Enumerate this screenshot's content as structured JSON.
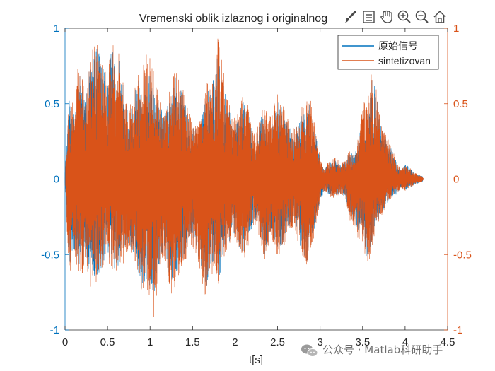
{
  "chart_data": {
    "type": "line",
    "title": "Vremenski oblik izlaznog i originalnog",
    "xlabel": "t[s]",
    "ylabel_left": "",
    "ylabel_right": "",
    "xlim": [
      0,
      4.5
    ],
    "ylim_left": [
      -1,
      1
    ],
    "ylim_right": [
      -1,
      1
    ],
    "xticks": [
      0,
      0.5,
      1,
      1.5,
      2,
      2.5,
      3,
      3.5,
      4,
      4.5
    ],
    "xtick_labels": [
      "0",
      "0.5",
      "1",
      "1.5",
      "2",
      "2.5",
      "3",
      "3.5",
      "4",
      "4.5"
    ],
    "yticks_left": [
      -1,
      -0.5,
      0,
      0.5,
      1
    ],
    "ytick_labels_left": [
      "-1",
      "-0.5",
      "0",
      "0.5",
      "1"
    ],
    "yticks_right": [
      -1,
      -0.5,
      0,
      0.5,
      1
    ],
    "ytick_labels_right": [
      "-1",
      "-0.5",
      "0",
      "0.5",
      "1"
    ],
    "grid": false,
    "legend_position": "top-right",
    "series": [
      {
        "name": "原始信号",
        "color": "#0072BD",
        "axis": "left",
        "duration": 4.22,
        "envelope_time": [
          0,
          0.05,
          0.1,
          0.15,
          0.2,
          0.25,
          0.3,
          0.35,
          0.4,
          0.45,
          0.5,
          0.55,
          0.6,
          0.65,
          0.7,
          0.75,
          0.8,
          0.85,
          0.9,
          0.95,
          1.0,
          1.05,
          1.1,
          1.15,
          1.2,
          1.25,
          1.3,
          1.35,
          1.4,
          1.45,
          1.5,
          1.55,
          1.6,
          1.65,
          1.7,
          1.75,
          1.8,
          1.85,
          1.9,
          1.95,
          2.0,
          2.05,
          2.1,
          2.15,
          2.2,
          2.25,
          2.3,
          2.35,
          2.4,
          2.45,
          2.5,
          2.55,
          2.6,
          2.65,
          2.7,
          2.75,
          2.8,
          2.85,
          2.9,
          2.95,
          3.0,
          3.05,
          3.1,
          3.15,
          3.2,
          3.25,
          3.3,
          3.35,
          3.4,
          3.45,
          3.5,
          3.55,
          3.6,
          3.65,
          3.7,
          3.75,
          3.8,
          3.85,
          3.9,
          3.95,
          4.0,
          4.05,
          4.1,
          4.15,
          4.2,
          4.22
        ],
        "envelope_max": [
          0.05,
          0.55,
          0.42,
          0.72,
          0.65,
          0.58,
          0.78,
          0.85,
          0.92,
          0.75,
          0.62,
          0.9,
          0.7,
          0.82,
          0.55,
          0.45,
          0.5,
          0.68,
          0.6,
          0.78,
          0.72,
          0.62,
          0.5,
          0.45,
          0.48,
          0.65,
          0.7,
          0.6,
          0.55,
          0.4,
          0.35,
          0.32,
          0.38,
          0.62,
          0.58,
          0.68,
          0.85,
          0.72,
          0.5,
          0.42,
          0.35,
          0.45,
          0.52,
          0.48,
          0.32,
          0.28,
          0.4,
          0.5,
          0.38,
          0.45,
          0.52,
          0.48,
          0.4,
          0.35,
          0.32,
          0.38,
          0.45,
          0.52,
          0.48,
          0.3,
          0.15,
          0.05,
          0.12,
          0.15,
          0.12,
          0.1,
          0.12,
          0.2,
          0.15,
          0.25,
          0.45,
          0.48,
          0.68,
          0.62,
          0.4,
          0.3,
          0.25,
          0.2,
          0.12,
          0.06,
          0.1,
          0.08,
          0.05,
          0.03,
          0.02,
          0.0
        ],
        "envelope_min": [
          -0.05,
          -0.6,
          -0.45,
          -0.55,
          -0.6,
          -0.5,
          -0.72,
          -0.65,
          -0.7,
          -0.6,
          -0.5,
          -0.58,
          -0.6,
          -0.55,
          -0.5,
          -0.42,
          -0.5,
          -0.55,
          -0.78,
          -0.68,
          -0.72,
          -0.75,
          -0.6,
          -0.5,
          -0.55,
          -0.72,
          -0.65,
          -0.6,
          -0.5,
          -0.45,
          -0.4,
          -0.5,
          -0.62,
          -0.75,
          -0.65,
          -0.55,
          -0.7,
          -0.55,
          -0.45,
          -0.4,
          -0.38,
          -0.45,
          -0.5,
          -0.42,
          -0.32,
          -0.3,
          -0.4,
          -0.55,
          -0.42,
          -0.38,
          -0.5,
          -0.45,
          -0.4,
          -0.35,
          -0.3,
          -0.42,
          -0.5,
          -0.55,
          -0.45,
          -0.28,
          -0.15,
          -0.08,
          -0.1,
          -0.12,
          -0.1,
          -0.1,
          -0.12,
          -0.25,
          -0.3,
          -0.38,
          -0.4,
          -0.55,
          -0.45,
          -0.35,
          -0.25,
          -0.2,
          -0.15,
          -0.12,
          -0.1,
          -0.06,
          -0.08,
          -0.06,
          -0.04,
          -0.03,
          -0.02,
          0.0
        ]
      },
      {
        "name": "sintetizovan",
        "color": "#D95319",
        "axis": "right",
        "duration": 4.22,
        "envelope_time": [
          0,
          0.05,
          0.1,
          0.15,
          0.2,
          0.25,
          0.3,
          0.35,
          0.4,
          0.45,
          0.5,
          0.55,
          0.6,
          0.65,
          0.7,
          0.75,
          0.8,
          0.85,
          0.9,
          0.95,
          1.0,
          1.05,
          1.1,
          1.15,
          1.2,
          1.25,
          1.3,
          1.35,
          1.4,
          1.45,
          1.5,
          1.55,
          1.6,
          1.65,
          1.7,
          1.75,
          1.8,
          1.85,
          1.9,
          1.95,
          2.0,
          2.05,
          2.1,
          2.15,
          2.2,
          2.25,
          2.3,
          2.35,
          2.4,
          2.45,
          2.5,
          2.55,
          2.6,
          2.65,
          2.7,
          2.75,
          2.8,
          2.85,
          2.9,
          2.95,
          3.0,
          3.05,
          3.1,
          3.15,
          3.2,
          3.25,
          3.3,
          3.35,
          3.4,
          3.45,
          3.5,
          3.55,
          3.6,
          3.65,
          3.7,
          3.75,
          3.8,
          3.85,
          3.9,
          3.95,
          4.0,
          4.05,
          4.1,
          4.15,
          4.2,
          4.22
        ],
        "envelope_max": [
          0.05,
          0.6,
          0.5,
          0.78,
          0.7,
          0.62,
          0.8,
          0.95,
          1.0,
          0.8,
          0.65,
          0.95,
          0.75,
          0.9,
          0.6,
          0.5,
          0.55,
          0.75,
          0.68,
          0.85,
          0.8,
          0.72,
          0.55,
          0.5,
          0.55,
          0.72,
          0.78,
          0.65,
          0.6,
          0.45,
          0.4,
          0.35,
          0.42,
          0.68,
          0.62,
          0.72,
          0.95,
          0.8,
          0.55,
          0.48,
          0.4,
          0.5,
          0.58,
          0.52,
          0.35,
          0.3,
          0.45,
          0.55,
          0.42,
          0.5,
          0.58,
          0.52,
          0.45,
          0.4,
          0.35,
          0.42,
          0.5,
          0.55,
          0.52,
          0.32,
          0.15,
          0.06,
          0.12,
          0.15,
          0.14,
          0.1,
          0.14,
          0.22,
          0.18,
          0.28,
          0.5,
          0.55,
          0.72,
          0.68,
          0.45,
          0.32,
          0.28,
          0.2,
          0.12,
          0.06,
          0.1,
          0.08,
          0.05,
          0.03,
          0.02,
          0.0
        ],
        "envelope_min": [
          -0.05,
          -0.65,
          -0.5,
          -0.6,
          -0.65,
          -0.55,
          -0.75,
          -0.7,
          -0.72,
          -0.62,
          -0.55,
          -0.62,
          -0.65,
          -0.6,
          -0.55,
          -0.45,
          -0.52,
          -0.6,
          -0.8,
          -0.7,
          -0.82,
          -1.0,
          -0.65,
          -0.55,
          -0.6,
          -0.78,
          -0.7,
          -0.62,
          -0.55,
          -0.5,
          -0.45,
          -0.52,
          -0.65,
          -0.8,
          -0.68,
          -0.6,
          -0.72,
          -0.6,
          -0.48,
          -0.42,
          -0.4,
          -0.48,
          -0.55,
          -0.45,
          -0.35,
          -0.32,
          -0.42,
          -0.58,
          -0.45,
          -0.42,
          -0.52,
          -0.48,
          -0.42,
          -0.38,
          -0.32,
          -0.45,
          -0.52,
          -0.58,
          -0.48,
          -0.3,
          -0.15,
          -0.08,
          -0.1,
          -0.14,
          -0.12,
          -0.1,
          -0.14,
          -0.28,
          -0.32,
          -0.4,
          -0.42,
          -0.58,
          -0.5,
          -0.38,
          -0.28,
          -0.22,
          -0.16,
          -0.12,
          -0.1,
          -0.06,
          -0.08,
          -0.06,
          -0.04,
          -0.03,
          -0.02,
          0.0
        ]
      }
    ],
    "colors": {
      "left_axis": "#0072BD",
      "right_axis": "#D95319",
      "axis_frame": "#262626"
    }
  },
  "toolbar": {
    "icons": [
      "brush-icon",
      "legend-icon",
      "pan-hand-icon",
      "zoom-in-icon",
      "zoom-out-icon",
      "home-icon"
    ]
  },
  "watermark": {
    "text": "公众号 · Matlab科研助手"
  }
}
